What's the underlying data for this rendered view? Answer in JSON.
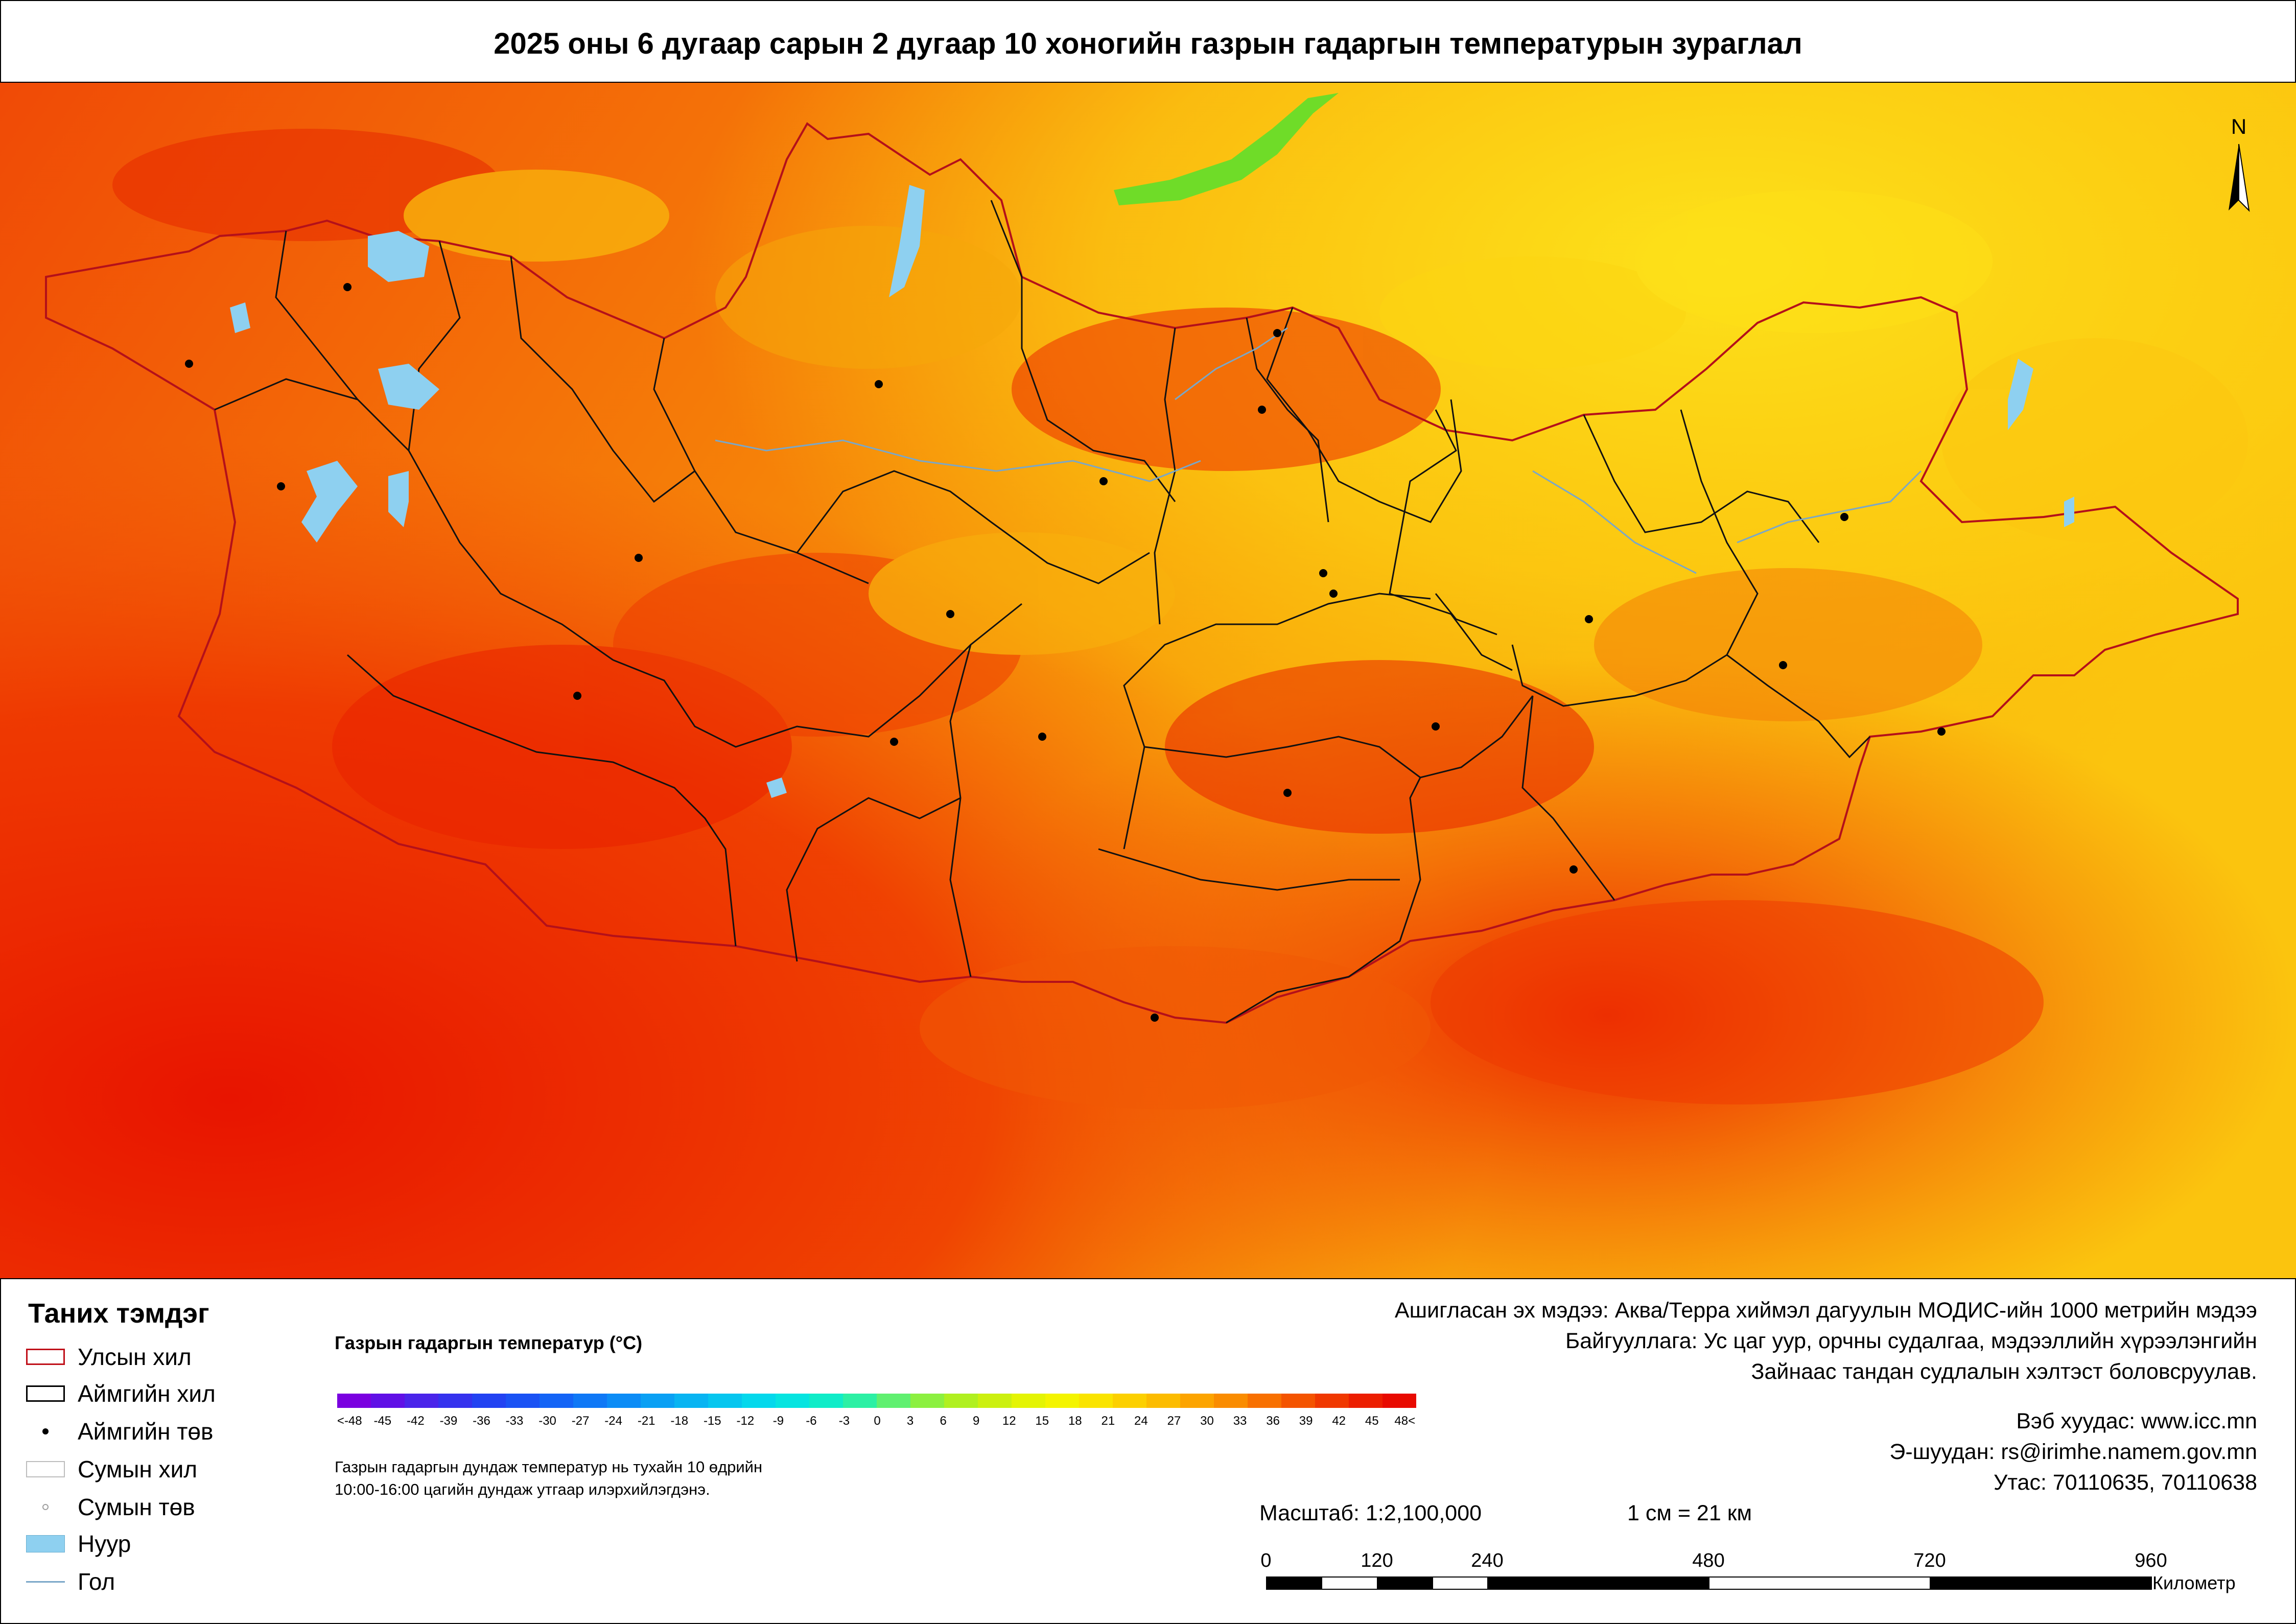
{
  "title": "2025 оны 6 дугаар сарын 2 дугаар 10 хоногийн газрын гадаргын температурын зураглал",
  "north_arrow": "N",
  "legend": {
    "heading": "Таних тэмдэг",
    "items": [
      {
        "label": "Улсын хил",
        "symbol": "boundary-national",
        "color": "#c0101a"
      },
      {
        "label": "Аймгийн хил",
        "symbol": "boundary-province",
        "color": "#000000"
      },
      {
        "label": "Аймгийн төв",
        "symbol": "dot-province-center",
        "color": "#000000"
      },
      {
        "label": "Сумын хил",
        "symbol": "boundary-soum",
        "color": "#bdbdbd"
      },
      {
        "label": "Сумын төв",
        "symbol": "dot-soum-center",
        "color": "#9e9e9e"
      },
      {
        "label": "Нуур",
        "symbol": "lake",
        "color": "#8ed0f0"
      },
      {
        "label": "Гол",
        "symbol": "river",
        "color": "#7aa7c8"
      }
    ]
  },
  "color_scale": {
    "title": "Газрын гадаргын температур (°С)",
    "labels": [
      "<-48",
      "-45",
      "-42",
      "-39",
      "-36",
      "-33",
      "-30",
      "-27",
      "-24",
      "-21",
      "-18",
      "-15",
      "-12",
      "-9",
      "-6",
      "-3",
      "0",
      "3",
      "6",
      "9",
      "12",
      "15",
      "18",
      "21",
      "24",
      "27",
      "30",
      "33",
      "36",
      "39",
      "42",
      "45",
      "48<"
    ],
    "colors": [
      "#7a00e0",
      "#6010e6",
      "#4a24ea",
      "#3532ee",
      "#2242f2",
      "#1a52f4",
      "#1464f6",
      "#0f78f6",
      "#0c8cf6",
      "#0aa0f4",
      "#08b4f2",
      "#06c6ef",
      "#04d8ec",
      "#06e4e0",
      "#10ecc8",
      "#2cf0a4",
      "#60f070",
      "#8cf040",
      "#b0f020",
      "#ccf010",
      "#e4f404",
      "#f4f400",
      "#fae400",
      "#fcd000",
      "#fcbc00",
      "#fca400",
      "#fa8c00",
      "#f87000",
      "#f45400",
      "#f03800",
      "#ec1e00",
      "#e80a00"
    ]
  },
  "note": [
    "Газрын гадаргын дундаж температур нь тухайн 10 өдрийн",
    "10:00-16:00 цагийн дундаж утгаар илэрхийлэгдэнэ."
  ],
  "source": [
    "Ашигласан эх мэдээ: Аква/Терра хиймэл дагуулын МОДИС-ийн 1000 метрийн мэдээ",
    "Байгууллага: Ус цаг уур, орчны судалгаа, мэдээллийн хүрээлэнгийн",
    "Зайнаас тандан судлалын хэлтэст боловсруулав."
  ],
  "contact": {
    "web": "Вэб хуудас: www.icc.mn",
    "email": "Э-шуудан: rs@irimhe.namem.gov.mn",
    "phone": "Утас: 70110635, 70110638"
  },
  "scale": {
    "ratio": "Масштаб: 1:2,100,000",
    "equivalence": "1 см = 21 км",
    "ticks": [
      "0",
      "120",
      "240",
      "480",
      "720",
      "960"
    ],
    "unit": "Километр"
  }
}
